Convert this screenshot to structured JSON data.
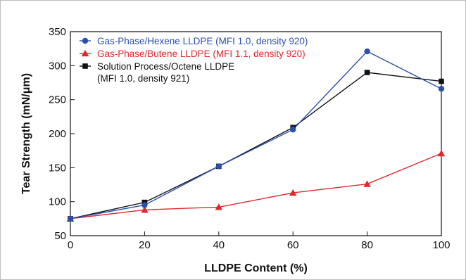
{
  "chart_data": {
    "type": "line",
    "xlabel": "LLDPE Content (%)",
    "ylabel": "Tear Strength (mN/μm)",
    "xlim": [
      0,
      100
    ],
    "ylim": [
      50,
      350
    ],
    "x_ticks": [
      0,
      20,
      40,
      60,
      80,
      100
    ],
    "y_ticks": [
      50,
      100,
      150,
      200,
      250,
      300,
      350
    ],
    "grid": false,
    "legend_position": "top-left",
    "series": [
      {
        "name": "Gas-Phase/Hexene LLDPE (MFI 1.0, density 920)",
        "color": "#2a4fae",
        "marker": "circle",
        "x": [
          0,
          20,
          40,
          60,
          80,
          100
        ],
        "y": [
          75,
          95,
          152,
          206,
          321,
          266
        ]
      },
      {
        "name": "Gas-Phase/Butene LLDPE (MFI 1.1, density 920)",
        "color": "#e0282c",
        "marker": "triangle",
        "x": [
          0,
          20,
          40,
          60,
          80,
          100
        ],
        "y": [
          75,
          88,
          92,
          113,
          126,
          171
        ]
      },
      {
        "name": "Solution Process/Octene LLDPE",
        "name_line2": "(MFI 1.0, density 921)",
        "color": "#111111",
        "marker": "square",
        "x": [
          0,
          20,
          40,
          60,
          80,
          100
        ],
        "y": [
          75,
          99,
          152,
          209,
          290,
          277
        ]
      }
    ]
  }
}
